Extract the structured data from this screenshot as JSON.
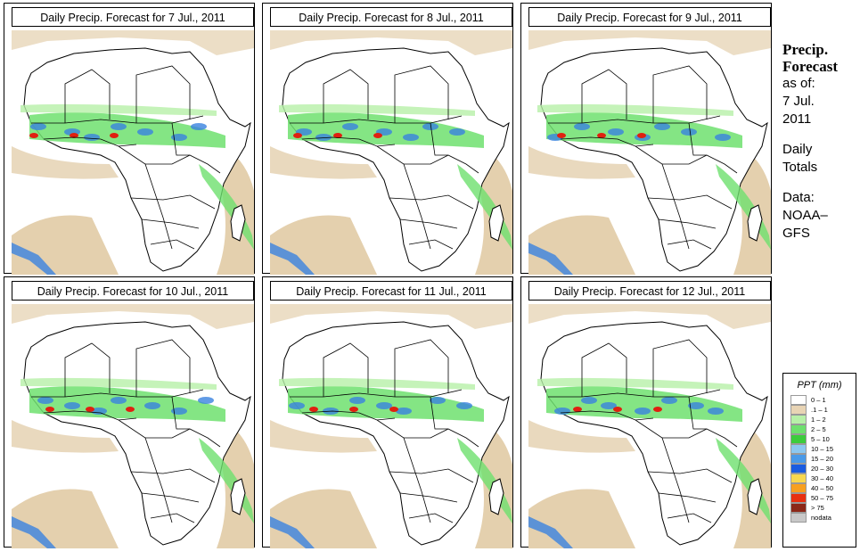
{
  "panels": [
    {
      "title": "Daily Precip. Forecast for  7 Jul., 2011"
    },
    {
      "title": "Daily Precip. Forecast for  8 Jul., 2011"
    },
    {
      "title": "Daily Precip. Forecast for  9 Jul., 2011"
    },
    {
      "title": "Daily Precip. Forecast for  10 Jul., 2011"
    },
    {
      "title": "Daily Precip. Forecast for  11 Jul., 2011"
    },
    {
      "title": "Daily Precip. Forecast for  12 Jul., 2011"
    }
  ],
  "sidebar": {
    "heading1": "Precip.",
    "heading2": "Forecast",
    "asof": "as of:",
    "date1": "7 Jul.",
    "date2": "2011",
    "daily": "Daily",
    "totals": "Totals",
    "data": "Data:",
    "source1": "NOAA–",
    "source2": "GFS"
  },
  "legend": {
    "title": "PPT (mm)",
    "items": [
      {
        "label": "0 – 1",
        "color": "#ffffff"
      },
      {
        "label": ".1 – 1",
        "color": "#e8d4b4"
      },
      {
        "label": "1 – 2",
        "color": "#b7f0a8"
      },
      {
        "label": "2 – 5",
        "color": "#6ee06e"
      },
      {
        "label": "5 – 10",
        "color": "#3ccc3c"
      },
      {
        "label": "10 – 15",
        "color": "#8cc8f0"
      },
      {
        "label": "15 – 20",
        "color": "#4a9ae8"
      },
      {
        "label": "20 – 30",
        "color": "#1a5ce0"
      },
      {
        "label": "30 – 40",
        "color": "#f8d850"
      },
      {
        "label": "40 – 50",
        "color": "#f8a020"
      },
      {
        "label": "50 – 75",
        "color": "#e83010"
      },
      {
        "label": "> 75",
        "color": "#8c2818"
      },
      {
        "label": "nodata",
        "color": "#c8c8c8"
      }
    ]
  },
  "colors": {
    "land": "#ffffff",
    "tan": "#e4d0ae",
    "green": "#6ee06e",
    "blue": "#3a82e0",
    "red": "#e02010",
    "outline": "#000000"
  }
}
